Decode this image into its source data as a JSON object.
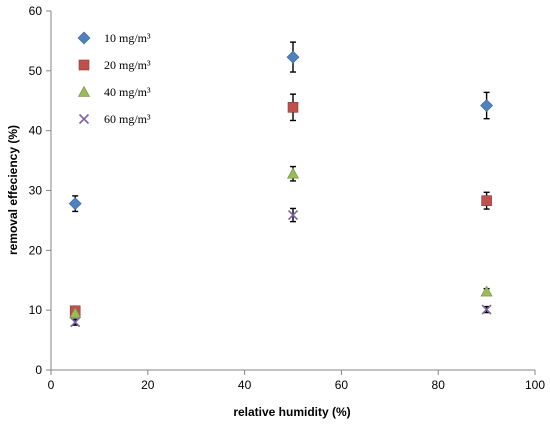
{
  "chart_data": {
    "type": "scatter",
    "xlabel": "relative humidity (%)",
    "ylabel": "removal effeciency (%)",
    "xlim": [
      0,
      100
    ],
    "ylim": [
      0,
      60
    ],
    "x_ticks": [
      "0",
      "20",
      "40",
      "60",
      "80",
      "100"
    ],
    "y_ticks": [
      "0",
      "10",
      "20",
      "30",
      "40",
      "50",
      "60"
    ],
    "grid": false,
    "legend_placement": "top-left",
    "series": [
      {
        "name": "10 mg/m³",
        "marker": "diamond",
        "color": "#4f81bd",
        "x": [
          5,
          50,
          90
        ],
        "y": [
          27.8,
          52.3,
          44.2
        ],
        "err": [
          1.3,
          2.5,
          2.2
        ]
      },
      {
        "name": "20 mg/m³",
        "marker": "square",
        "color": "#c0504d",
        "x": [
          5,
          50,
          90
        ],
        "y": [
          9.9,
          43.9,
          28.3
        ],
        "err": [
          0.5,
          2.2,
          1.4
        ]
      },
      {
        "name": "40 mg/m³",
        "marker": "triangle",
        "color": "#9bbb59",
        "x": [
          5,
          50,
          90
        ],
        "y": [
          9.5,
          32.8,
          13.1
        ],
        "err": [
          0.4,
          1.2,
          0.5
        ]
      },
      {
        "name": "60 mg/m³",
        "marker": "x",
        "color": "#8064a2",
        "x": [
          5,
          50,
          90
        ],
        "y": [
          8.0,
          25.9,
          10.1
        ],
        "err": [
          0.5,
          1.1,
          0.5
        ]
      }
    ]
  }
}
